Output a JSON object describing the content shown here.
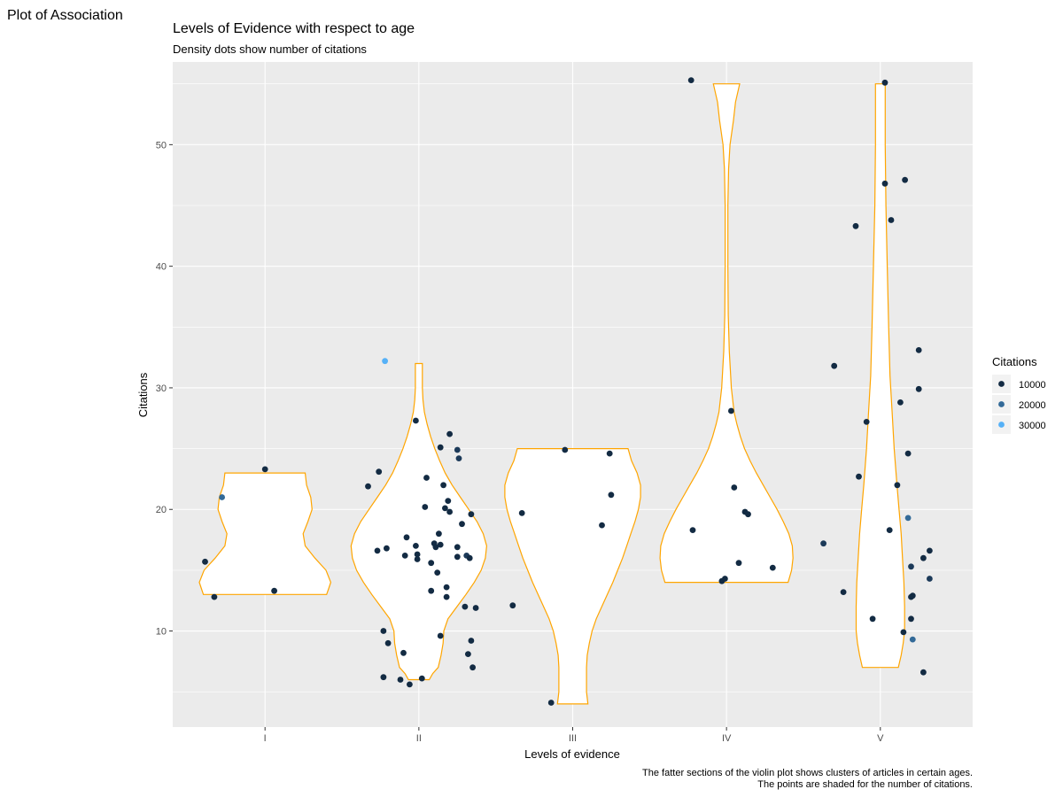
{
  "page": {
    "heading": "Plot of Association"
  },
  "chart_data": {
    "type": "violin",
    "title": "Levels of Evidence with respect to age",
    "subtitle": "Density dots show number of citations",
    "xlabel": "Levels of evidence",
    "ylabel": "Citations",
    "caption_lines": [
      "The fatter sections of the violin plot shows clusters of articles in certain ages.",
      "The points are shaded for the number of citations."
    ],
    "categories": [
      "I",
      "II",
      "III",
      "IV",
      "V"
    ],
    "ylim": [
      2.1,
      56.8
    ],
    "y_ticks": [
      10,
      20,
      30,
      40,
      50
    ],
    "grid": true,
    "colors": {
      "panel_background": "#ebebeb",
      "grid": "#ffffff",
      "violin_outline": "#ffa500",
      "violin_fill": "#ffffff",
      "point_low": "#132b43",
      "point_high": "#56b1f7"
    },
    "legend": {
      "title": "Citations",
      "position": "right",
      "entries": [
        {
          "label": "10000",
          "color": "#132b43"
        },
        {
          "label": "20000",
          "color": "#336a98"
        },
        {
          "label": "30000",
          "color": "#56b1f7"
        }
      ]
    },
    "violins": [
      {
        "category": "I",
        "ymin": 13.0,
        "ymax": 23.0,
        "profile": [
          [
            13.0,
            0.89
          ],
          [
            13.5,
            0.92
          ],
          [
            14.0,
            0.95
          ],
          [
            15.0,
            0.88
          ],
          [
            16.0,
            0.72
          ],
          [
            17.0,
            0.58
          ],
          [
            18.0,
            0.55
          ],
          [
            19.0,
            0.62
          ],
          [
            20.0,
            0.68
          ],
          [
            21.0,
            0.66
          ],
          [
            22.0,
            0.6
          ],
          [
            23.0,
            0.58
          ]
        ]
      },
      {
        "category": "II",
        "ymin": 6.0,
        "ymax": 32.0,
        "profile": [
          [
            6.0,
            0.15
          ],
          [
            6.5,
            0.2
          ],
          [
            7.0,
            0.28
          ],
          [
            8.0,
            0.32
          ],
          [
            9.0,
            0.35
          ],
          [
            10.0,
            0.36
          ],
          [
            11.0,
            0.42
          ],
          [
            12.0,
            0.55
          ],
          [
            13.0,
            0.68
          ],
          [
            14.0,
            0.8
          ],
          [
            15.0,
            0.9
          ],
          [
            16.0,
            0.96
          ],
          [
            17.0,
            0.98
          ],
          [
            18.0,
            0.93
          ],
          [
            19.0,
            0.84
          ],
          [
            20.0,
            0.72
          ],
          [
            21.0,
            0.6
          ],
          [
            22.0,
            0.48
          ],
          [
            23.0,
            0.38
          ],
          [
            24.0,
            0.3
          ],
          [
            25.0,
            0.23
          ],
          [
            26.0,
            0.17
          ],
          [
            27.0,
            0.12
          ],
          [
            28.0,
            0.08
          ],
          [
            29.0,
            0.06
          ],
          [
            30.0,
            0.05
          ],
          [
            31.0,
            0.05
          ],
          [
            32.0,
            0.05
          ]
        ]
      },
      {
        "category": "III",
        "ymin": 4.0,
        "ymax": 25.0,
        "profile": [
          [
            4.0,
            0.22
          ],
          [
            5.0,
            0.2
          ],
          [
            6.0,
            0.2
          ],
          [
            7.0,
            0.2
          ],
          [
            8.0,
            0.21
          ],
          [
            9.0,
            0.24
          ],
          [
            10.0,
            0.28
          ],
          [
            11.0,
            0.34
          ],
          [
            12.0,
            0.42
          ],
          [
            13.0,
            0.5
          ],
          [
            14.0,
            0.58
          ],
          [
            15.0,
            0.65
          ],
          [
            16.0,
            0.72
          ],
          [
            17.0,
            0.78
          ],
          [
            18.0,
            0.84
          ],
          [
            19.0,
            0.9
          ],
          [
            20.0,
            0.95
          ],
          [
            21.0,
            0.98
          ],
          [
            22.0,
            0.98
          ],
          [
            23.0,
            0.93
          ],
          [
            24.0,
            0.85
          ],
          [
            25.0,
            0.8
          ]
        ]
      },
      {
        "category": "IV",
        "ymin": 14.0,
        "ymax": 55.0,
        "profile": [
          [
            14.0,
            0.89
          ],
          [
            15.0,
            0.94
          ],
          [
            16.0,
            0.96
          ],
          [
            17.0,
            0.95
          ],
          [
            18.0,
            0.9
          ],
          [
            19.0,
            0.82
          ],
          [
            20.0,
            0.73
          ],
          [
            21.0,
            0.63
          ],
          [
            22.0,
            0.53
          ],
          [
            23.0,
            0.43
          ],
          [
            24.0,
            0.34
          ],
          [
            25.0,
            0.26
          ],
          [
            26.0,
            0.2
          ],
          [
            27.0,
            0.15
          ],
          [
            28.0,
            0.11
          ],
          [
            30.0,
            0.07
          ],
          [
            33.0,
            0.04
          ],
          [
            36.0,
            0.025
          ],
          [
            40.0,
            0.02
          ],
          [
            45.0,
            0.02
          ],
          [
            48.0,
            0.03
          ],
          [
            50.0,
            0.05
          ],
          [
            52.0,
            0.1
          ],
          [
            53.5,
            0.13
          ],
          [
            55.0,
            0.19
          ]
        ]
      },
      {
        "category": "V",
        "ymin": 7.0,
        "ymax": 55.0,
        "profile": [
          [
            7.0,
            0.26
          ],
          [
            8.0,
            0.3
          ],
          [
            9.0,
            0.33
          ],
          [
            10.0,
            0.35
          ],
          [
            12.0,
            0.35
          ],
          [
            14.0,
            0.34
          ],
          [
            16.0,
            0.32
          ],
          [
            18.0,
            0.3
          ],
          [
            20.0,
            0.27
          ],
          [
            22.0,
            0.24
          ],
          [
            25.0,
            0.2
          ],
          [
            28.0,
            0.17
          ],
          [
            31.0,
            0.14
          ],
          [
            35.0,
            0.12
          ],
          [
            40.0,
            0.1
          ],
          [
            45.0,
            0.08
          ],
          [
            50.0,
            0.07
          ],
          [
            55.0,
            0.07
          ]
        ]
      }
    ],
    "points": [
      {
        "category": "I",
        "jitter": -0.39,
        "y": 15.7,
        "c": "#132b43"
      },
      {
        "category": "I",
        "jitter": -0.33,
        "y": 12.8,
        "c": "#132b43"
      },
      {
        "category": "I",
        "jitter": -0.28,
        "y": 21.0,
        "c": "#336a98"
      },
      {
        "category": "I",
        "jitter": 0.0,
        "y": 23.3,
        "c": "#132b43"
      },
      {
        "category": "I",
        "jitter": 0.06,
        "y": 13.3,
        "c": "#132b43"
      },
      {
        "category": "II",
        "jitter": -0.33,
        "y": 21.9,
        "c": "#132b43"
      },
      {
        "category": "II",
        "jitter": -0.26,
        "y": 23.1,
        "c": "#132b43"
      },
      {
        "category": "II",
        "jitter": -0.27,
        "y": 16.6,
        "c": "#132b43"
      },
      {
        "category": "II",
        "jitter": -0.21,
        "y": 16.8,
        "c": "#132b43"
      },
      {
        "category": "II",
        "jitter": -0.23,
        "y": 10.0,
        "c": "#132b43"
      },
      {
        "category": "II",
        "jitter": -0.2,
        "y": 9.0,
        "c": "#132b43"
      },
      {
        "category": "II",
        "jitter": -0.23,
        "y": 6.2,
        "c": "#132b43"
      },
      {
        "category": "II",
        "jitter": -0.22,
        "y": 32.2,
        "c": "#56b1f7"
      },
      {
        "category": "II",
        "jitter": -0.12,
        "y": 6.0,
        "c": "#132b43"
      },
      {
        "category": "II",
        "jitter": -0.06,
        "y": 5.6,
        "c": "#132b43"
      },
      {
        "category": "II",
        "jitter": 0.02,
        "y": 6.1,
        "c": "#132b43"
      },
      {
        "category": "II",
        "jitter": -0.1,
        "y": 8.2,
        "c": "#132b43"
      },
      {
        "category": "II",
        "jitter": -0.08,
        "y": 17.7,
        "c": "#132b43"
      },
      {
        "category": "II",
        "jitter": -0.09,
        "y": 16.2,
        "c": "#132b43"
      },
      {
        "category": "II",
        "jitter": -0.01,
        "y": 16.3,
        "c": "#132b43"
      },
      {
        "category": "II",
        "jitter": -0.01,
        "y": 15.9,
        "c": "#132b43"
      },
      {
        "category": "II",
        "jitter": -0.02,
        "y": 17.0,
        "c": "#132b43"
      },
      {
        "category": "II",
        "jitter": -0.02,
        "y": 27.3,
        "c": "#132b43"
      },
      {
        "category": "II",
        "jitter": 0.04,
        "y": 20.2,
        "c": "#132b43"
      },
      {
        "category": "II",
        "jitter": 0.05,
        "y": 22.6,
        "c": "#132b43"
      },
      {
        "category": "II",
        "jitter": 0.08,
        "y": 15.6,
        "c": "#132b43"
      },
      {
        "category": "II",
        "jitter": 0.08,
        "y": 13.3,
        "c": "#132b43"
      },
      {
        "category": "II",
        "jitter": 0.1,
        "y": 17.2,
        "c": "#132b43"
      },
      {
        "category": "II",
        "jitter": 0.11,
        "y": 16.9,
        "c": "#132b43"
      },
      {
        "category": "II",
        "jitter": 0.12,
        "y": 14.8,
        "c": "#132b43"
      },
      {
        "category": "II",
        "jitter": 0.13,
        "y": 18.0,
        "c": "#132b43"
      },
      {
        "category": "II",
        "jitter": 0.14,
        "y": 25.1,
        "c": "#132b43"
      },
      {
        "category": "II",
        "jitter": 0.14,
        "y": 17.1,
        "c": "#132b43"
      },
      {
        "category": "II",
        "jitter": 0.14,
        "y": 9.6,
        "c": "#132b43"
      },
      {
        "category": "II",
        "jitter": 0.16,
        "y": 22.0,
        "c": "#132b43"
      },
      {
        "category": "II",
        "jitter": 0.17,
        "y": 20.1,
        "c": "#132b43"
      },
      {
        "category": "II",
        "jitter": 0.18,
        "y": 13.6,
        "c": "#132b43"
      },
      {
        "category": "II",
        "jitter": 0.18,
        "y": 12.8,
        "c": "#132b43"
      },
      {
        "category": "II",
        "jitter": 0.19,
        "y": 20.7,
        "c": "#132b43"
      },
      {
        "category": "II",
        "jitter": 0.2,
        "y": 19.8,
        "c": "#132b43"
      },
      {
        "category": "II",
        "jitter": 0.2,
        "y": 26.2,
        "c": "#132b43"
      },
      {
        "category": "II",
        "jitter": 0.25,
        "y": 24.9,
        "c": "#1c3a59"
      },
      {
        "category": "II",
        "jitter": 0.26,
        "y": 24.2,
        "c": "#1c3a59"
      },
      {
        "category": "II",
        "jitter": 0.25,
        "y": 16.9,
        "c": "#132b43"
      },
      {
        "category": "II",
        "jitter": 0.25,
        "y": 16.1,
        "c": "#132b43"
      },
      {
        "category": "II",
        "jitter": 0.28,
        "y": 18.8,
        "c": "#132b43"
      },
      {
        "category": "II",
        "jitter": 0.3,
        "y": 12.0,
        "c": "#132b43"
      },
      {
        "category": "II",
        "jitter": 0.31,
        "y": 16.2,
        "c": "#1c3a59"
      },
      {
        "category": "II",
        "jitter": 0.33,
        "y": 16.0,
        "c": "#132b43"
      },
      {
        "category": "II",
        "jitter": 0.34,
        "y": 19.6,
        "c": "#132b43"
      },
      {
        "category": "II",
        "jitter": 0.32,
        "y": 8.1,
        "c": "#132b43"
      },
      {
        "category": "II",
        "jitter": 0.34,
        "y": 9.2,
        "c": "#132b43"
      },
      {
        "category": "II",
        "jitter": 0.35,
        "y": 7.0,
        "c": "#132b43"
      },
      {
        "category": "II",
        "jitter": 0.37,
        "y": 11.9,
        "c": "#132b43"
      },
      {
        "category": "III",
        "jitter": -0.39,
        "y": 12.1,
        "c": "#132b43"
      },
      {
        "category": "III",
        "jitter": -0.33,
        "y": 19.7,
        "c": "#132b43"
      },
      {
        "category": "III",
        "jitter": -0.14,
        "y": 4.1,
        "c": "#132b43"
      },
      {
        "category": "III",
        "jitter": -0.05,
        "y": 24.9,
        "c": "#132b43"
      },
      {
        "category": "III",
        "jitter": 0.19,
        "y": 18.7,
        "c": "#132b43"
      },
      {
        "category": "III",
        "jitter": 0.24,
        "y": 24.6,
        "c": "#132b43"
      },
      {
        "category": "III",
        "jitter": 0.25,
        "y": 21.2,
        "c": "#132b43"
      },
      {
        "category": "IV",
        "jitter": -0.23,
        "y": 55.3,
        "c": "#132b43"
      },
      {
        "category": "IV",
        "jitter": -0.22,
        "y": 18.3,
        "c": "#132b43"
      },
      {
        "category": "IV",
        "jitter": -0.03,
        "y": 14.1,
        "c": "#132b43"
      },
      {
        "category": "IV",
        "jitter": -0.01,
        "y": 14.3,
        "c": "#132b43"
      },
      {
        "category": "IV",
        "jitter": 0.03,
        "y": 28.1,
        "c": "#132b43"
      },
      {
        "category": "IV",
        "jitter": 0.05,
        "y": 21.8,
        "c": "#132b43"
      },
      {
        "category": "IV",
        "jitter": 0.08,
        "y": 15.6,
        "c": "#132b43"
      },
      {
        "category": "IV",
        "jitter": 0.12,
        "y": 19.8,
        "c": "#132b43"
      },
      {
        "category": "IV",
        "jitter": 0.14,
        "y": 19.6,
        "c": "#132b43"
      },
      {
        "category": "IV",
        "jitter": 0.3,
        "y": 15.2,
        "c": "#132b43"
      },
      {
        "category": "V",
        "jitter": -0.37,
        "y": 17.2,
        "c": "#1c3a59"
      },
      {
        "category": "V",
        "jitter": -0.3,
        "y": 31.8,
        "c": "#132b43"
      },
      {
        "category": "V",
        "jitter": -0.24,
        "y": 13.2,
        "c": "#132b43"
      },
      {
        "category": "V",
        "jitter": -0.16,
        "y": 43.3,
        "c": "#132b43"
      },
      {
        "category": "V",
        "jitter": -0.14,
        "y": 22.7,
        "c": "#132b43"
      },
      {
        "category": "V",
        "jitter": -0.09,
        "y": 27.2,
        "c": "#132b43"
      },
      {
        "category": "V",
        "jitter": -0.05,
        "y": 11.0,
        "c": "#132b43"
      },
      {
        "category": "V",
        "jitter": 0.03,
        "y": 55.1,
        "c": "#132b43"
      },
      {
        "category": "V",
        "jitter": 0.03,
        "y": 46.8,
        "c": "#132b43"
      },
      {
        "category": "V",
        "jitter": 0.07,
        "y": 43.8,
        "c": "#132b43"
      },
      {
        "category": "V",
        "jitter": 0.06,
        "y": 18.3,
        "c": "#132b43"
      },
      {
        "category": "V",
        "jitter": 0.11,
        "y": 22.0,
        "c": "#132b43"
      },
      {
        "category": "V",
        "jitter": 0.13,
        "y": 28.8,
        "c": "#132b43"
      },
      {
        "category": "V",
        "jitter": 0.16,
        "y": 47.1,
        "c": "#132b43"
      },
      {
        "category": "V",
        "jitter": 0.15,
        "y": 9.9,
        "c": "#132b43"
      },
      {
        "category": "V",
        "jitter": 0.18,
        "y": 24.6,
        "c": "#132b43"
      },
      {
        "category": "V",
        "jitter": 0.18,
        "y": 19.3,
        "c": "#336a98"
      },
      {
        "category": "V",
        "jitter": 0.2,
        "y": 15.3,
        "c": "#1c3a59"
      },
      {
        "category": "V",
        "jitter": 0.2,
        "y": 12.8,
        "c": "#132b43"
      },
      {
        "category": "V",
        "jitter": 0.21,
        "y": 12.9,
        "c": "#132b43"
      },
      {
        "category": "V",
        "jitter": 0.2,
        "y": 11.0,
        "c": "#132b43"
      },
      {
        "category": "V",
        "jitter": 0.21,
        "y": 9.3,
        "c": "#336a98"
      },
      {
        "category": "V",
        "jitter": 0.25,
        "y": 33.1,
        "c": "#132b43"
      },
      {
        "category": "V",
        "jitter": 0.25,
        "y": 29.9,
        "c": "#132b43"
      },
      {
        "category": "V",
        "jitter": 0.28,
        "y": 16.0,
        "c": "#132b43"
      },
      {
        "category": "V",
        "jitter": 0.28,
        "y": 6.6,
        "c": "#132b43"
      },
      {
        "category": "V",
        "jitter": 0.32,
        "y": 16.6,
        "c": "#132b43"
      },
      {
        "category": "V",
        "jitter": 0.32,
        "y": 14.3,
        "c": "#1c3a59"
      }
    ]
  }
}
